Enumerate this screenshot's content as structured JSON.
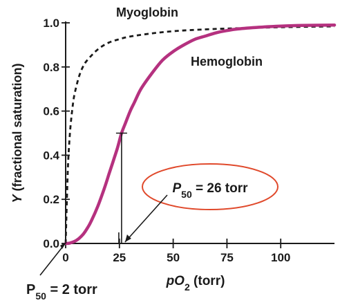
{
  "chart_data": {
    "type": "line",
    "xlabel": {
      "main": "pO",
      "sub": "2",
      "rest": " (torr)"
    },
    "ylabel": {
      "italic": "Y",
      "rest": " (fractional saturation)"
    },
    "xlim": [
      0,
      125
    ],
    "ylim": [
      0,
      1.0
    ],
    "x_ticks": [
      0,
      25,
      50,
      75,
      100
    ],
    "x_tick_labels": [
      "0",
      "25",
      "50",
      "75",
      "100"
    ],
    "y_ticks": [
      0,
      0.2,
      0.4,
      0.6,
      0.8,
      1.0
    ],
    "y_tick_labels": [
      "0.0",
      "0.2",
      "0.4",
      "0.6",
      "0.8",
      "1.0"
    ],
    "series": [
      {
        "name": "Myoglobin",
        "style": "dashed",
        "color": "#1a1a1a",
        "x": [
          0,
          1,
          2,
          3,
          4,
          6,
          8,
          10,
          15,
          20,
          25,
          30,
          40,
          50,
          60,
          75,
          100,
          125
        ],
        "y": [
          0,
          0.33,
          0.5,
          0.6,
          0.67,
          0.75,
          0.8,
          0.83,
          0.88,
          0.91,
          0.926,
          0.938,
          0.952,
          0.962,
          0.968,
          0.974,
          0.98,
          0.984
        ]
      },
      {
        "name": "Hemoglobin",
        "style": "solid",
        "color": "#b5317f",
        "x": [
          0,
          2,
          5,
          8,
          10,
          12,
          15,
          18,
          20,
          22,
          24,
          26,
          28,
          30,
          32,
          35,
          40,
          45,
          50,
          55,
          60,
          65,
          70,
          75,
          80,
          90,
          100,
          110,
          125
        ],
        "y": [
          0,
          0.002,
          0.014,
          0.04,
          0.068,
          0.103,
          0.17,
          0.25,
          0.31,
          0.37,
          0.43,
          0.5,
          0.55,
          0.6,
          0.64,
          0.7,
          0.77,
          0.83,
          0.87,
          0.9,
          0.925,
          0.94,
          0.955,
          0.965,
          0.972,
          0.98,
          0.985,
          0.988,
          0.99
        ]
      }
    ],
    "annotations": {
      "myoglobin_label": "Myoglobin",
      "hemoglobin_label": "Hemoglobin",
      "p50_hb": {
        "main": "P",
        "sub": "50",
        "rest": " = 26 torr",
        "x": 26,
        "y": 0.5
      },
      "p50_mb": {
        "main": "P",
        "sub": "50",
        "rest": " = 2 torr",
        "x": 2,
        "y": 0.5
      }
    },
    "colors": {
      "hemoglobin": "#b5317f",
      "ellipse": "#e0492b",
      "axis": "#1a1a1a"
    }
  }
}
